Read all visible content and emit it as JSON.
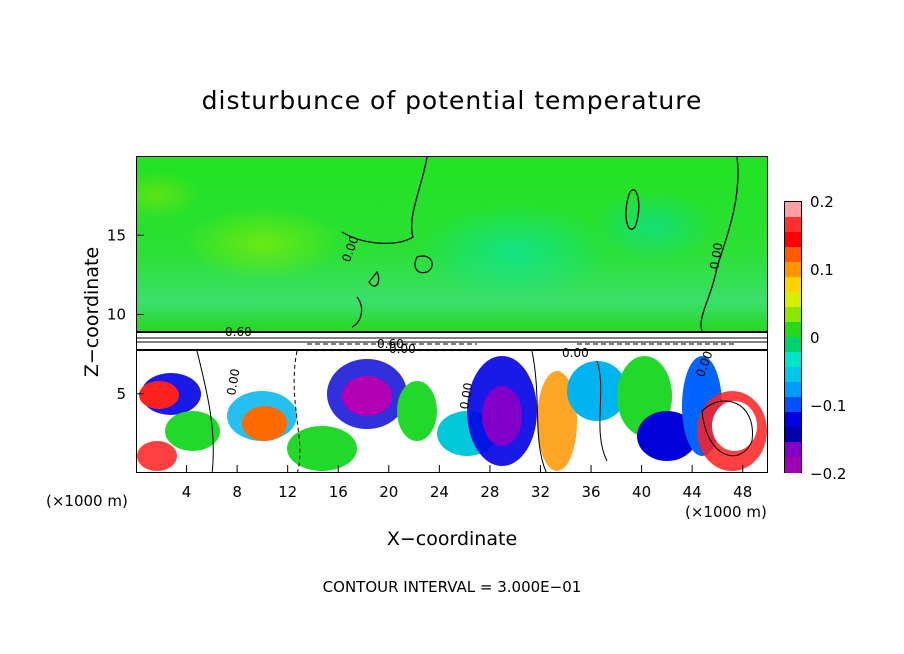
{
  "chart_data": {
    "type": "heatmap",
    "title": "disturbunce of potential temperature",
    "xlabel": "X−coordinate",
    "ylabel": "Z−coordinate",
    "x_unit": "(×1000 m)",
    "y_unit": "(×1000 m)",
    "x_ticks": [
      "4",
      "8",
      "12",
      "16",
      "20",
      "24",
      "28",
      "32",
      "36",
      "40",
      "44",
      "48"
    ],
    "y_ticks": [
      "5",
      "10",
      "15"
    ],
    "xlim": [
      0,
      50
    ],
    "ylim": [
      0,
      20
    ],
    "colorbar": {
      "min": -0.2,
      "max": 0.2,
      "tick_labels": [
        "0.2",
        "0.1",
        "0",
        "−0.1",
        "−0.2"
      ],
      "colors": [
        "#ff9f9f",
        "#ff3030",
        "#ff0000",
        "#ff5a00",
        "#ff9600",
        "#ffd200",
        "#d4f000",
        "#8ce600",
        "#26d81a",
        "#00d26e",
        "#00e6c8",
        "#00c8e6",
        "#009bff",
        "#0050ff",
        "#0000e6",
        "#0000aa",
        "#8200c8",
        "#a000b4"
      ]
    },
    "contour_labels": [
      "0.60",
      "0.00",
      "0.00",
      "0.00",
      "0.60",
      "0.00",
      "0.00",
      "0.00",
      "0.00"
    ],
    "contour_interval": "CONTOUR INTERVAL = 3.000E−01"
  }
}
